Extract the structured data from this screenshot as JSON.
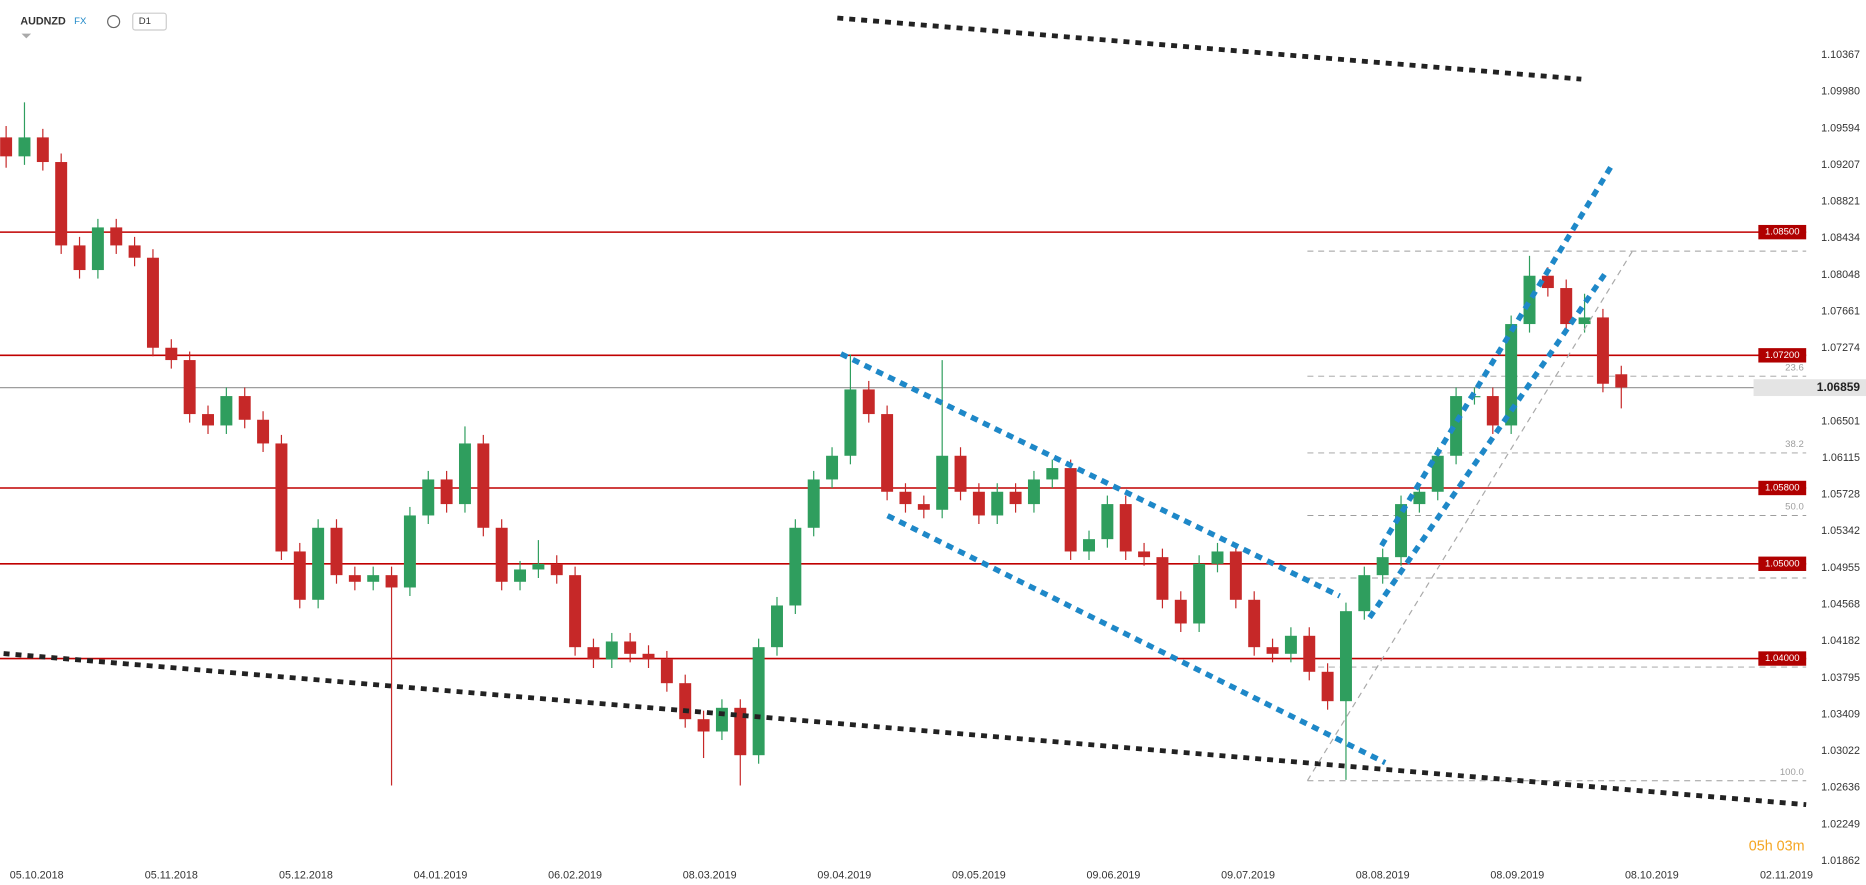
{
  "chart_data": {
    "type": "candlestick",
    "title": "AUDNZD",
    "market": "FX",
    "timeframe": "D1",
    "countdown": "05h 03m",
    "up_color": "#2f9e5e",
    "down_color": "#c62828",
    "level_color": "#c00000",
    "fib_color": "#9e9e9e",
    "x": [
      1,
      4,
      7,
      10,
      13,
      16,
      19,
      22,
      25,
      28,
      31,
      34,
      37,
      40,
      43,
      46,
      49,
      52,
      55,
      58,
      61,
      64,
      67,
      70,
      73,
      76,
      79,
      82,
      85,
      88,
      91,
      94,
      97,
      100,
      103,
      106,
      109,
      112,
      115,
      118,
      121,
      124,
      127,
      130,
      133,
      136,
      139,
      142,
      145,
      148,
      151,
      154,
      157,
      160,
      163,
      166,
      169,
      172,
      175,
      178,
      181,
      184,
      187,
      190,
      193,
      196,
      199,
      202,
      205,
      208,
      211,
      214,
      217,
      220,
      223,
      226,
      229,
      232,
      235,
      238,
      241,
      244,
      247,
      250,
      253,
      256,
      259,
      262,
      265
    ],
    "open": [
      1.095,
      1.093,
      1.095,
      1.0924,
      1.0836,
      1.081,
      1.0855,
      1.0836,
      1.0823,
      1.0728,
      1.0715,
      1.0658,
      1.0646,
      1.0677,
      1.0652,
      1.0627,
      1.0513,
      1.0462,
      1.0538,
      1.0488,
      1.0481,
      1.0488,
      1.0475,
      1.0551,
      1.0589,
      1.0563,
      1.0627,
      1.0538,
      1.0481,
      1.0494,
      1.05,
      1.0488,
      1.0412,
      1.0399,
      1.0418,
      1.0405,
      1.0399,
      1.0374,
      1.0336,
      1.0323,
      1.0348,
      1.0298,
      1.0412,
      1.0456,
      1.0538,
      1.0589,
      1.0614,
      1.0684,
      1.0658,
      1.0576,
      1.0563,
      1.0557,
      1.0614,
      1.0576,
      1.0551,
      1.0576,
      1.0563,
      1.0589,
      1.0601,
      1.0513,
      1.0526,
      1.0563,
      1.0513,
      1.0507,
      1.0462,
      1.0437,
      1.05,
      1.0513,
      1.0462,
      1.0412,
      1.0405,
      1.0424,
      1.0386,
      1.0355,
      1.045,
      1.0488,
      1.0507,
      1.0563,
      1.0576,
      1.0614,
      1.0677,
      1.0677,
      1.0646,
      1.0753,
      1.0804,
      1.0791,
      1.0753,
      1.076,
      1.07
    ],
    "high": [
      1.0962,
      1.0987,
      1.0959,
      1.0933,
      1.0845,
      1.0864,
      1.0864,
      1.0845,
      1.0832,
      1.0737,
      1.0724,
      1.0667,
      1.0686,
      1.0686,
      1.0661,
      1.0636,
      1.0522,
      1.0547,
      1.0547,
      1.0497,
      1.0497,
      1.0497,
      1.056,
      1.0598,
      1.0598,
      1.0645,
      1.0636,
      1.0547,
      1.0503,
      1.0525,
      1.0509,
      1.0497,
      1.0421,
      1.0427,
      1.0427,
      1.0414,
      1.0408,
      1.0383,
      1.0345,
      1.0357,
      1.0357,
      1.0421,
      1.0465,
      1.0547,
      1.0598,
      1.0623,
      1.0721,
      1.0693,
      1.0667,
      1.0585,
      1.0572,
      1.0715,
      1.0623,
      1.0585,
      1.0585,
      1.0585,
      1.0598,
      1.061,
      1.061,
      1.0535,
      1.0572,
      1.0572,
      1.0522,
      1.0516,
      1.0471,
      1.0509,
      1.0522,
      1.0522,
      1.0471,
      1.0421,
      1.0433,
      1.0433,
      1.0395,
      1.0459,
      1.0497,
      1.0516,
      1.0572,
      1.0585,
      1.0623,
      1.0686,
      1.0686,
      1.0686,
      1.0762,
      1.0825,
      1.0813,
      1.08,
      1.0785,
      1.0769,
      1.0709
    ],
    "low": [
      1.0918,
      1.0921,
      1.0915,
      1.0827,
      1.0801,
      1.0801,
      1.0827,
      1.0814,
      1.0719,
      1.0706,
      1.0649,
      1.0637,
      1.0637,
      1.0643,
      1.0618,
      1.0504,
      1.0453,
      1.0453,
      1.0479,
      1.0472,
      1.0472,
      1.0266,
      1.0466,
      1.0542,
      1.0554,
      1.0554,
      1.0529,
      1.0472,
      1.0472,
      1.0485,
      1.0479,
      1.0403,
      1.039,
      1.039,
      1.0396,
      1.039,
      1.0365,
      1.0327,
      1.0295,
      1.0314,
      1.0266,
      1.0289,
      1.0403,
      1.0447,
      1.0529,
      1.058,
      1.0605,
      1.0649,
      1.0567,
      1.0554,
      1.0548,
      1.0548,
      1.0567,
      1.0542,
      1.0542,
      1.0554,
      1.0554,
      1.058,
      1.0504,
      1.0504,
      1.0517,
      1.0504,
      1.0498,
      1.0453,
      1.0428,
      1.0428,
      1.0491,
      1.0453,
      1.0403,
      1.0396,
      1.0396,
      1.0377,
      1.0346,
      1.0272,
      1.0441,
      1.0479,
      1.0498,
      1.0554,
      1.0567,
      1.0605,
      1.0668,
      1.0637,
      1.0637,
      1.0744,
      1.0782,
      1.0744,
      1.0744,
      1.0681,
      1.0664
    ],
    "close": [
      1.093,
      1.095,
      1.0924,
      1.0836,
      1.081,
      1.0855,
      1.0836,
      1.0823,
      1.0728,
      1.0715,
      1.0658,
      1.0646,
      1.0677,
      1.0652,
      1.0627,
      1.0513,
      1.0462,
      1.0538,
      1.0488,
      1.0481,
      1.0488,
      1.0475,
      1.0551,
      1.0589,
      1.0563,
      1.0627,
      1.0538,
      1.0481,
      1.0494,
      1.05,
      1.0488,
      1.0412,
      1.0399,
      1.0418,
      1.0405,
      1.0399,
      1.0374,
      1.0336,
      1.0323,
      1.0348,
      1.0298,
      1.0412,
      1.0456,
      1.0538,
      1.0589,
      1.0614,
      1.0684,
      1.0658,
      1.0576,
      1.0563,
      1.0557,
      1.0614,
      1.0576,
      1.0551,
      1.0576,
      1.0563,
      1.0589,
      1.0601,
      1.0513,
      1.0526,
      1.0563,
      1.0513,
      1.0507,
      1.0462,
      1.0437,
      1.05,
      1.0513,
      1.0462,
      1.0412,
      1.0405,
      1.0424,
      1.0386,
      1.0355,
      1.045,
      1.0488,
      1.0507,
      1.0563,
      1.0576,
      1.0614,
      1.0677,
      1.0677,
      1.0646,
      1.0753,
      1.0804,
      1.0791,
      1.0753,
      1.076,
      1.069,
      1.0686
    ],
    "xlim": [
      0,
      305
    ],
    "xticks": [
      {
        "value": 6,
        "label": "05.10.2018"
      },
      {
        "value": 28,
        "label": "05.11.2018"
      },
      {
        "value": 50,
        "label": "05.12.2018"
      },
      {
        "value": 72,
        "label": "04.01.2019"
      },
      {
        "value": 94,
        "label": "06.02.2019"
      },
      {
        "value": 116,
        "label": "08.03.2019"
      },
      {
        "value": 138,
        "label": "09.04.2019"
      },
      {
        "value": 160,
        "label": "09.05.2019"
      },
      {
        "value": 182,
        "label": "09.06.2019"
      },
      {
        "value": 204,
        "label": "09.07.2019"
      },
      {
        "value": 226,
        "label": "08.08.2019"
      },
      {
        "value": 248,
        "label": "08.09.2019"
      },
      {
        "value": 270,
        "label": "08.10.2019"
      },
      {
        "value": 292,
        "label": "02.11.2019"
      }
    ],
    "ylim": [
      1.0161,
      1.1095
    ],
    "yticks": [
      1.10367,
      {
        "value": 1.0998,
        "label": "1.09980"
      },
      1.09594,
      1.09207,
      1.08821,
      1.08434,
      1.08048,
      1.07661,
      1.07274,
      1.06501,
      1.06115,
      1.05728,
      1.05342,
      1.04955,
      1.04568,
      1.04182,
      1.03795,
      1.03409,
      1.03022,
      1.02636,
      1.02249,
      1.01862
    ],
    "levels": [
      {
        "value": 1.085,
        "label": "1.08500"
      },
      {
        "value": 1.072,
        "label": "1.07200"
      },
      {
        "value": 1.058,
        "label": "1.05800"
      },
      {
        "value": 1.05,
        "label": "1.05000"
      },
      {
        "value": 1.04,
        "label": "1.04000"
      }
    ],
    "current_price": 1.06859,
    "fib_levels": [
      {
        "value": 1.083,
        "label": null
      },
      {
        "value": 1.0698,
        "label": "23.6"
      },
      {
        "value": 1.0617,
        "label": "38.2"
      },
      {
        "value": 1.0551,
        "label": "50.0"
      },
      {
        "value": 1.0485,
        "label": null
      },
      {
        "value": 1.0391,
        "label": null
      },
      {
        "value": 1.0271,
        "label": "100.0"
      }
    ]
  }
}
